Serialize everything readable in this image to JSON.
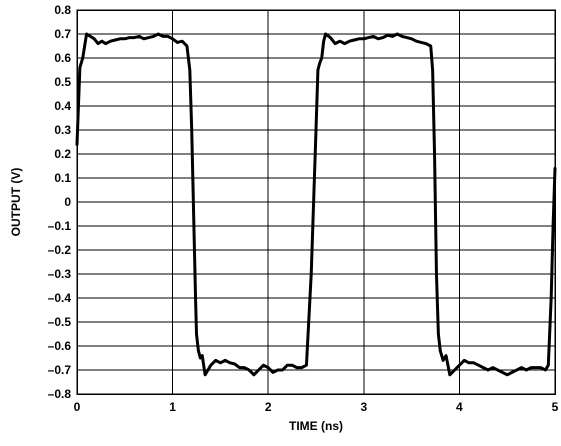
{
  "chart_data": {
    "type": "line",
    "title": "",
    "xlabel": "TIME (ns)",
    "ylabel": "OUTPUT (V)",
    "xlim": [
      0,
      5
    ],
    "ylim": [
      -0.8,
      0.8
    ],
    "grid": true,
    "x_ticks": [
      0,
      1,
      2,
      3,
      4,
      5
    ],
    "x_tick_labels": [
      "0",
      "1",
      "2",
      "3",
      "4",
      "5"
    ],
    "y_ticks": [
      0.8,
      0.7,
      0.6,
      0.5,
      0.4,
      0.3,
      0.2,
      0.1,
      0,
      -0.1,
      -0.2,
      -0.3,
      -0.4,
      -0.5,
      -0.6,
      -0.7,
      -0.8
    ],
    "y_tick_labels": [
      "0.8",
      "0.7",
      "0.6",
      "0.5",
      "0.4",
      "0.3",
      "0.2",
      "0.1",
      "0",
      "–0.1",
      "–0.2",
      "–0.3",
      "–0.4",
      "–0.5",
      "–0.6",
      "–0.7",
      "–0.8"
    ],
    "line_color": "#000000",
    "series": [
      {
        "x": [
          0.0,
          0.03,
          0.06,
          0.1,
          0.14,
          0.18,
          0.22,
          0.26,
          0.3,
          0.35,
          0.4,
          0.45,
          0.5,
          0.55,
          0.6,
          0.65,
          0.7,
          0.75,
          0.8,
          0.85,
          0.9,
          0.95,
          1.0,
          1.05,
          1.1,
          1.15,
          1.18,
          1.2,
          1.22,
          1.24,
          1.25,
          1.27,
          1.29,
          1.31,
          1.34,
          1.37,
          1.4,
          1.45,
          1.5,
          1.55,
          1.6,
          1.65,
          1.7,
          1.75,
          1.8,
          1.85,
          1.9,
          1.95,
          2.0,
          2.05,
          2.1,
          2.15,
          2.2,
          2.25,
          2.3,
          2.35,
          2.4,
          2.45,
          2.5,
          2.52,
          2.54,
          2.56,
          2.58,
          2.6,
          2.65,
          2.7,
          2.75,
          2.8,
          2.85,
          2.9,
          2.95,
          3.0,
          3.05,
          3.1,
          3.15,
          3.2,
          3.25,
          3.3,
          3.35,
          3.4,
          3.45,
          3.5,
          3.55,
          3.6,
          3.65,
          3.7,
          3.72,
          3.74,
          3.76,
          3.78,
          3.8,
          3.83,
          3.86,
          3.9,
          3.95,
          4.0,
          4.05,
          4.1,
          4.15,
          4.2,
          4.25,
          4.3,
          4.35,
          4.4,
          4.45,
          4.5,
          4.55,
          4.6,
          4.65,
          4.7,
          4.75,
          4.8,
          4.85,
          4.9,
          4.93,
          4.96,
          4.98,
          5.0
        ],
        "y": [
          0.24,
          0.56,
          0.6,
          0.7,
          0.69,
          0.68,
          0.66,
          0.67,
          0.66,
          0.67,
          0.675,
          0.68,
          0.68,
          0.685,
          0.685,
          0.69,
          0.68,
          0.685,
          0.69,
          0.7,
          0.69,
          0.69,
          0.68,
          0.665,
          0.67,
          0.65,
          0.55,
          0.3,
          -0.05,
          -0.4,
          -0.55,
          -0.62,
          -0.65,
          -0.64,
          -0.72,
          -0.7,
          -0.68,
          -0.66,
          -0.67,
          -0.66,
          -0.67,
          -0.675,
          -0.69,
          -0.69,
          -0.7,
          -0.72,
          -0.7,
          -0.68,
          -0.69,
          -0.71,
          -0.7,
          -0.7,
          -0.68,
          -0.68,
          -0.69,
          -0.69,
          -0.68,
          -0.3,
          0.3,
          0.55,
          0.58,
          0.6,
          0.67,
          0.7,
          0.685,
          0.66,
          0.67,
          0.66,
          0.67,
          0.675,
          0.68,
          0.68,
          0.685,
          0.69,
          0.68,
          0.685,
          0.695,
          0.69,
          0.7,
          0.69,
          0.685,
          0.68,
          0.67,
          0.665,
          0.66,
          0.65,
          0.55,
          0.2,
          -0.3,
          -0.55,
          -0.62,
          -0.66,
          -0.64,
          -0.72,
          -0.7,
          -0.68,
          -0.66,
          -0.67,
          -0.67,
          -0.68,
          -0.69,
          -0.7,
          -0.69,
          -0.7,
          -0.71,
          -0.72,
          -0.71,
          -0.7,
          -0.69,
          -0.7,
          -0.69,
          -0.69,
          -0.69,
          -0.7,
          -0.68,
          -0.4,
          -0.1,
          0.14
        ]
      }
    ]
  }
}
